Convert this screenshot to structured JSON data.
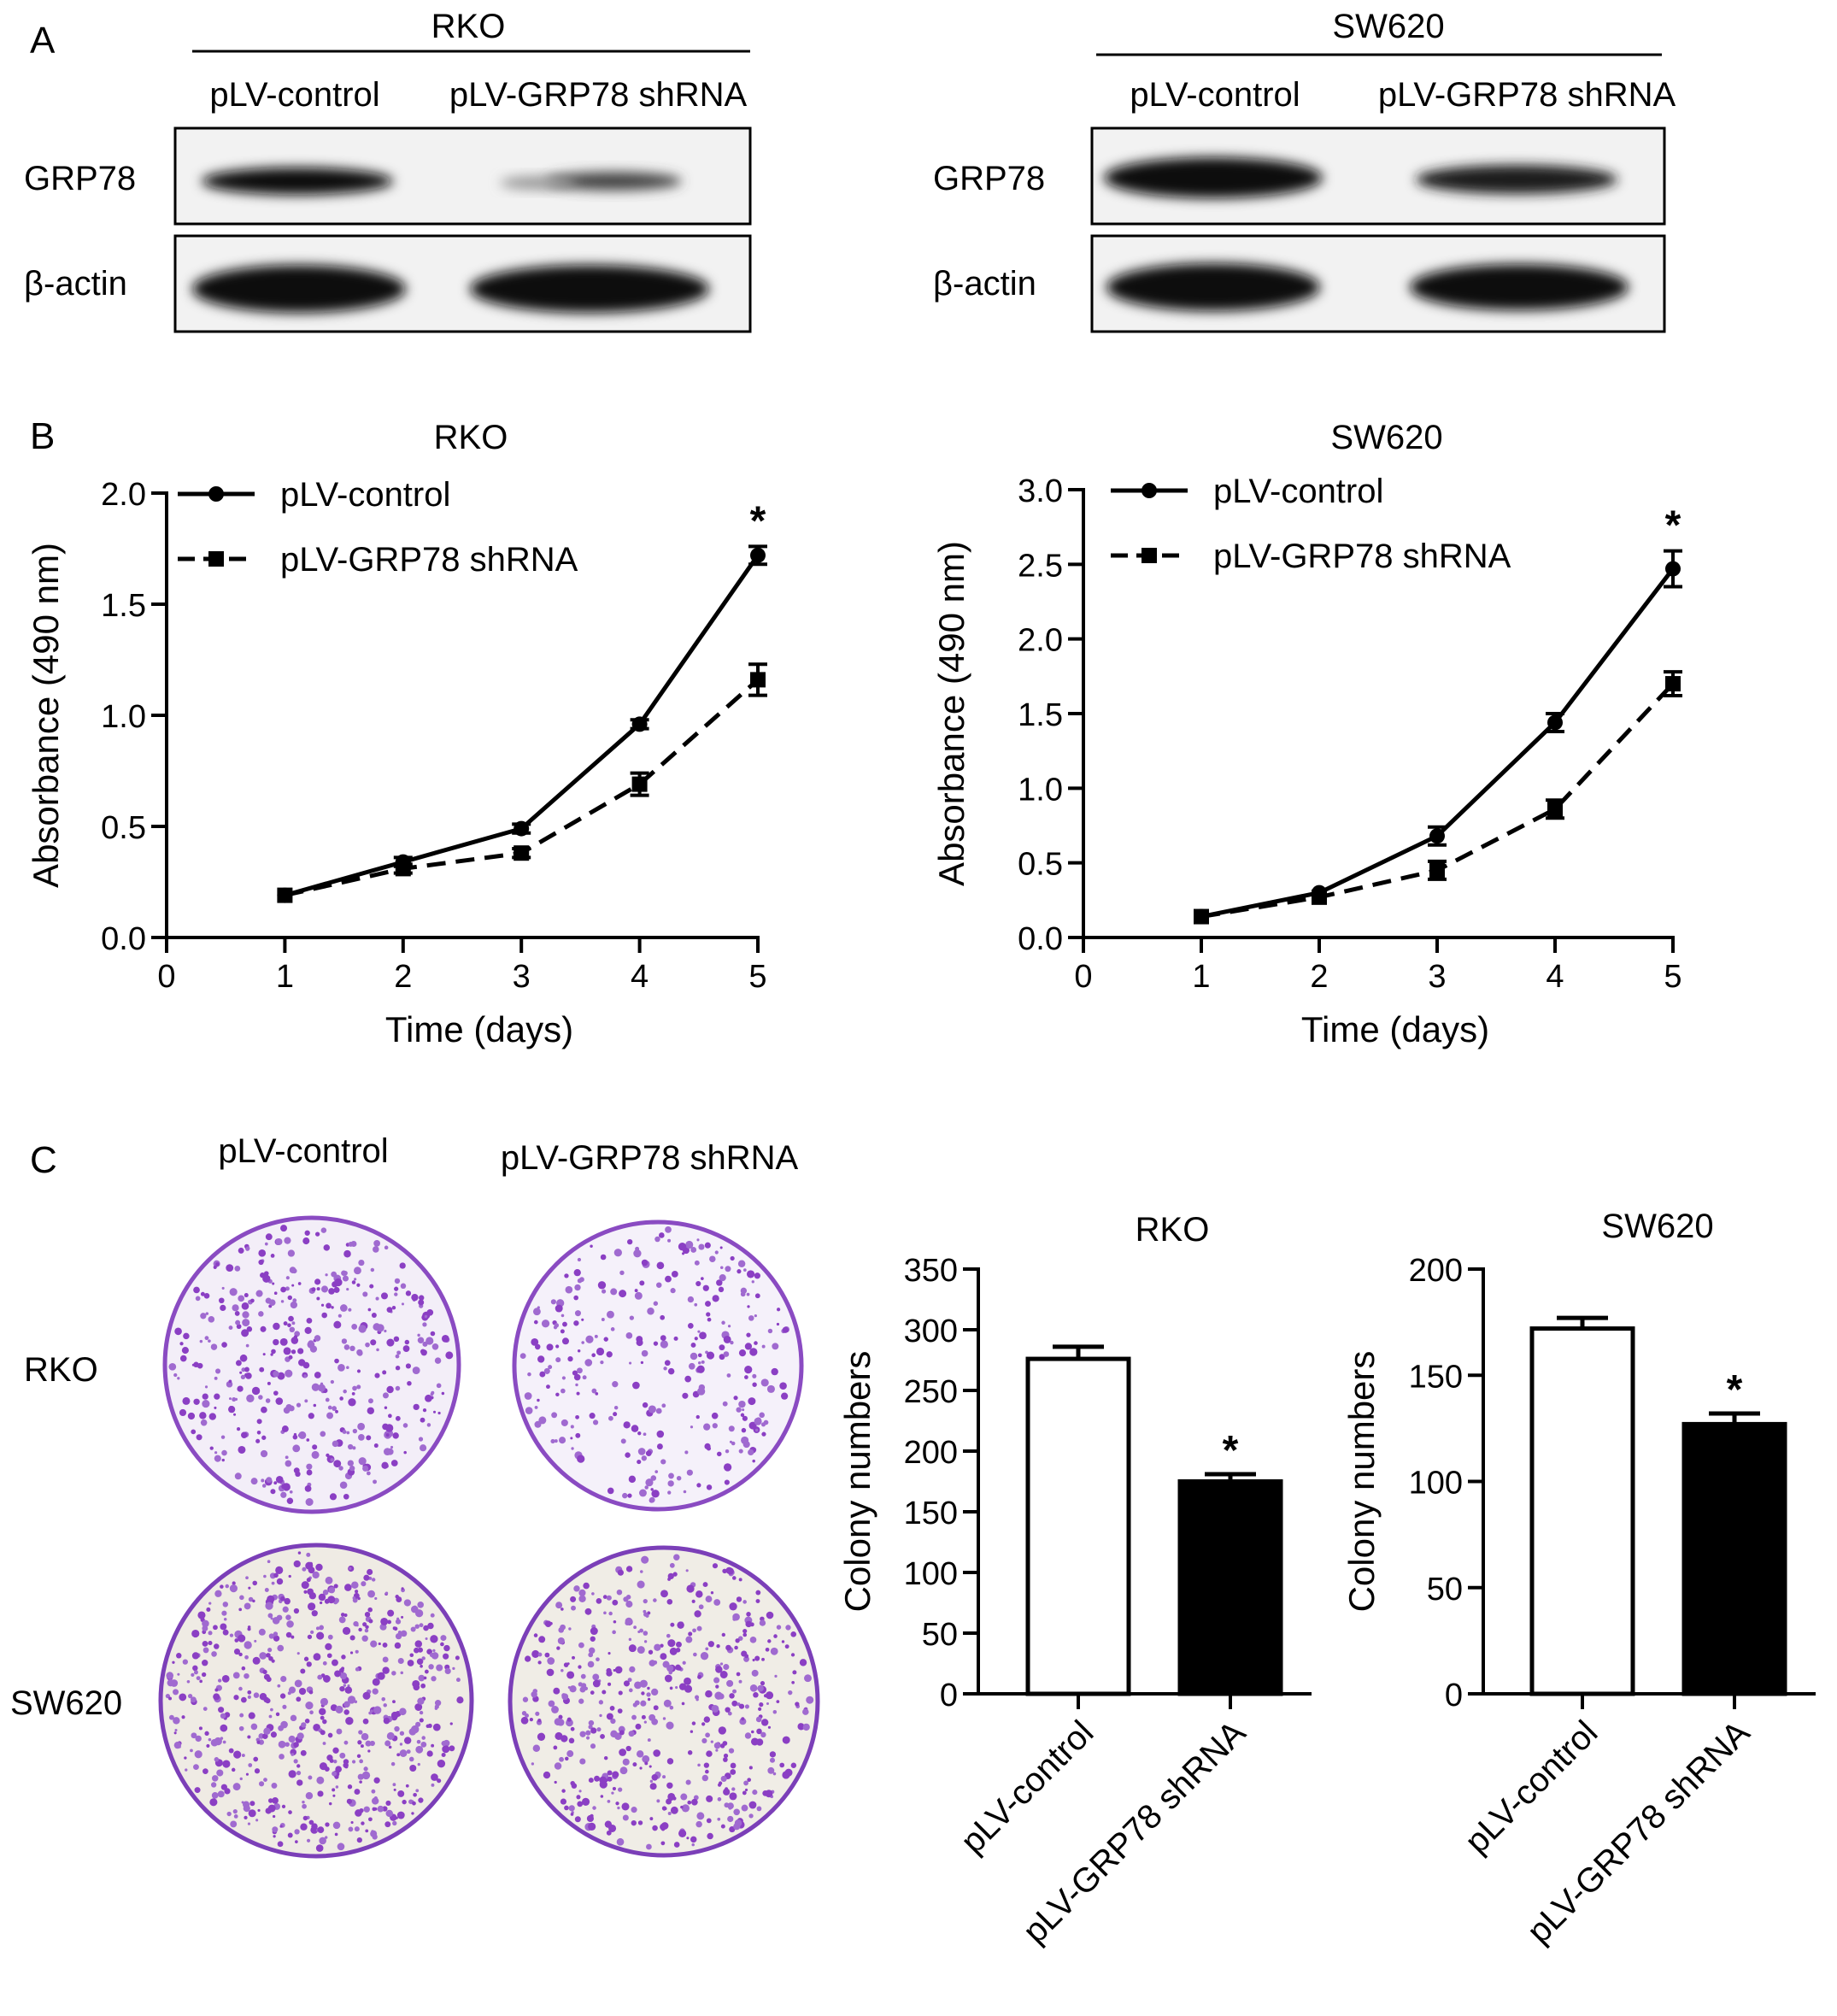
{
  "panel_labels": {
    "a": "A",
    "b": "B",
    "c": "C"
  },
  "western_blot": {
    "panels": [
      {
        "cell_line": "RKO",
        "lanes": [
          "pLV-control",
          "pLV-GRP78 shRNA"
        ],
        "proteins": [
          "GRP78",
          "β-actin"
        ]
      },
      {
        "cell_line": "SW620",
        "lanes": [
          "pLV-control",
          "pLV-GRP78 shRNA"
        ],
        "proteins": [
          "GRP78",
          "β-actin"
        ]
      }
    ]
  },
  "colony_plates": {
    "columns": [
      "pLV-control",
      "pLV-GRP78 shRNA"
    ],
    "rows": [
      "RKO",
      "SW620"
    ]
  },
  "chart_data": [
    {
      "type": "line",
      "title": "RKO",
      "xlabel": "Time (days)",
      "ylabel": "Absorbance (490 nm)",
      "xlim": [
        0,
        5
      ],
      "ylim": [
        0,
        2.0
      ],
      "xticks": [
        "0",
        "1",
        "2",
        "3",
        "4",
        "5"
      ],
      "yticks": [
        "0.0",
        "0.5",
        "1.0",
        "1.5",
        "2.0"
      ],
      "x": [
        1,
        2,
        3,
        4,
        5
      ],
      "legend_position": "top-left",
      "series": [
        {
          "name": "pLV-control",
          "style": "solid",
          "marker": "circle",
          "values": [
            0.19,
            0.34,
            0.49,
            0.96,
            1.72
          ],
          "errors": [
            0.01,
            0.02,
            0.02,
            0.02,
            0.04
          ]
        },
        {
          "name": "pLV-GRP78 shRNA",
          "style": "dashed",
          "marker": "square",
          "values": [
            0.19,
            0.31,
            0.38,
            0.69,
            1.16
          ],
          "errors": [
            0.01,
            0.02,
            0.02,
            0.05,
            0.07
          ]
        }
      ],
      "annotation": {
        "text": "*",
        "x": 5
      }
    },
    {
      "type": "line",
      "title": "SW620",
      "xlabel": "Time (days)",
      "ylabel": "Absorbance (490 nm)",
      "xlim": [
        0,
        5
      ],
      "ylim": [
        0,
        3.0
      ],
      "xticks": [
        "0",
        "1",
        "2",
        "3",
        "4",
        "5"
      ],
      "yticks": [
        "0.0",
        "0.5",
        "1.0",
        "1.5",
        "2.0",
        "2.5",
        "3.0"
      ],
      "x": [
        1,
        2,
        3,
        4,
        5
      ],
      "legend_position": "top-left",
      "series": [
        {
          "name": "pLV-control",
          "style": "solid",
          "marker": "circle",
          "values": [
            0.14,
            0.3,
            0.68,
            1.44,
            2.47
          ],
          "errors": [
            0.02,
            0.02,
            0.06,
            0.06,
            0.12
          ]
        },
        {
          "name": "pLV-GRP78 shRNA",
          "style": "dashed",
          "marker": "square",
          "values": [
            0.14,
            0.27,
            0.45,
            0.86,
            1.7
          ],
          "errors": [
            0.02,
            0.02,
            0.06,
            0.06,
            0.08
          ]
        }
      ],
      "annotation": {
        "text": "*",
        "x": 5
      }
    },
    {
      "type": "bar",
      "title": "RKO",
      "ylabel": "Colony numbers",
      "ylim": [
        0,
        350
      ],
      "yticks": [
        "0",
        "50",
        "100",
        "150",
        "200",
        "250",
        "300",
        "350"
      ],
      "categories": [
        "pLV-control",
        "pLV-GRP78 shRNA"
      ],
      "values": [
        276,
        175
      ],
      "errors": [
        10,
        6
      ],
      "fills": [
        "#ffffff",
        "#000000"
      ],
      "annotation": {
        "text": "*",
        "category": 1
      }
    },
    {
      "type": "bar",
      "title": "SW620",
      "ylabel": "Colony numbers",
      "ylim": [
        0,
        200
      ],
      "yticks": [
        "0",
        "50",
        "100",
        "150",
        "200"
      ],
      "categories": [
        "pLV-control",
        "pLV-GRP78 shRNA"
      ],
      "values": [
        172,
        127
      ],
      "errors": [
        5,
        5
      ],
      "fills": [
        "#ffffff",
        "#000000"
      ],
      "annotation": {
        "text": "*",
        "category": 1
      }
    }
  ]
}
